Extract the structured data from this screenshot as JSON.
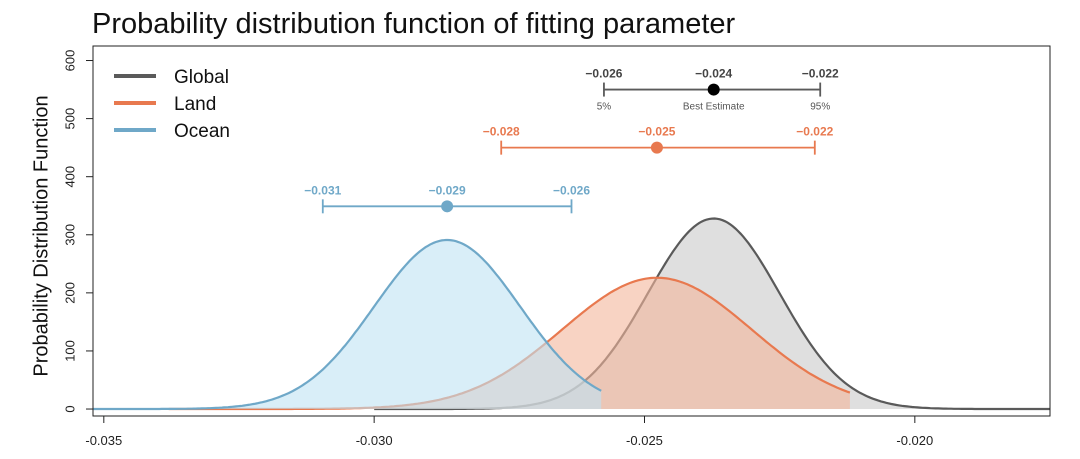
{
  "chart_data": {
    "type": "area",
    "title": "Probability distribution function of fitting parameter",
    "xlabel": "",
    "ylabel": "Probability Distribution Function",
    "xlim": [
      -0.0352,
      -0.0175
    ],
    "ylim": [
      -12,
      625
    ],
    "x_ticks": [
      -0.035,
      -0.03,
      -0.025,
      -0.02
    ],
    "x_tick_labels": [
      "-0.035",
      "-0.030",
      "-0.025",
      "-0.020"
    ],
    "y_ticks": [
      0,
      100,
      200,
      300,
      400,
      500,
      600
    ],
    "y_tick_labels": [
      "0",
      "100",
      "200",
      "300",
      "400",
      "500",
      "600"
    ],
    "legend_position": "top-left",
    "series": [
      {
        "name": "Global",
        "color": "#5a5a5a",
        "fill": "#c9c9c9",
        "mean": -0.02372,
        "sd": 0.00122,
        "peak": 328,
        "x_range": [
          -0.03,
          -0.0175
        ],
        "interval": {
          "low": -0.02575,
          "best": -0.02372,
          "high": -0.02175,
          "low_label": "−0.026",
          "best_label": "−0.024",
          "high_label": "−0.022",
          "y": 550,
          "low_note": "5%",
          "best_note": "Best Estimate",
          "high_note": "95%"
        }
      },
      {
        "name": "Land",
        "color": "#e8794f",
        "fill": "#f4b59b",
        "mean": -0.02477,
        "sd": 0.00175,
        "peak": 226,
        "x_range": [
          -0.0338,
          -0.0212
        ],
        "interval": {
          "low": -0.02765,
          "best": -0.02477,
          "high": -0.02185,
          "low_label": "−0.028",
          "best_label": "−0.025",
          "high_label": "−0.022",
          "y": 450
        }
      },
      {
        "name": "Ocean",
        "color": "#6fa8c8",
        "fill": "#bfe3f3",
        "mean": -0.02865,
        "sd": 0.00135,
        "peak": 291,
        "x_range": [
          -0.0355,
          -0.0258
        ],
        "interval": {
          "low": -0.03095,
          "best": -0.02865,
          "high": -0.02635,
          "low_label": "−0.031",
          "best_label": "−0.029",
          "high_label": "−0.026",
          "y": 349
        }
      }
    ]
  }
}
